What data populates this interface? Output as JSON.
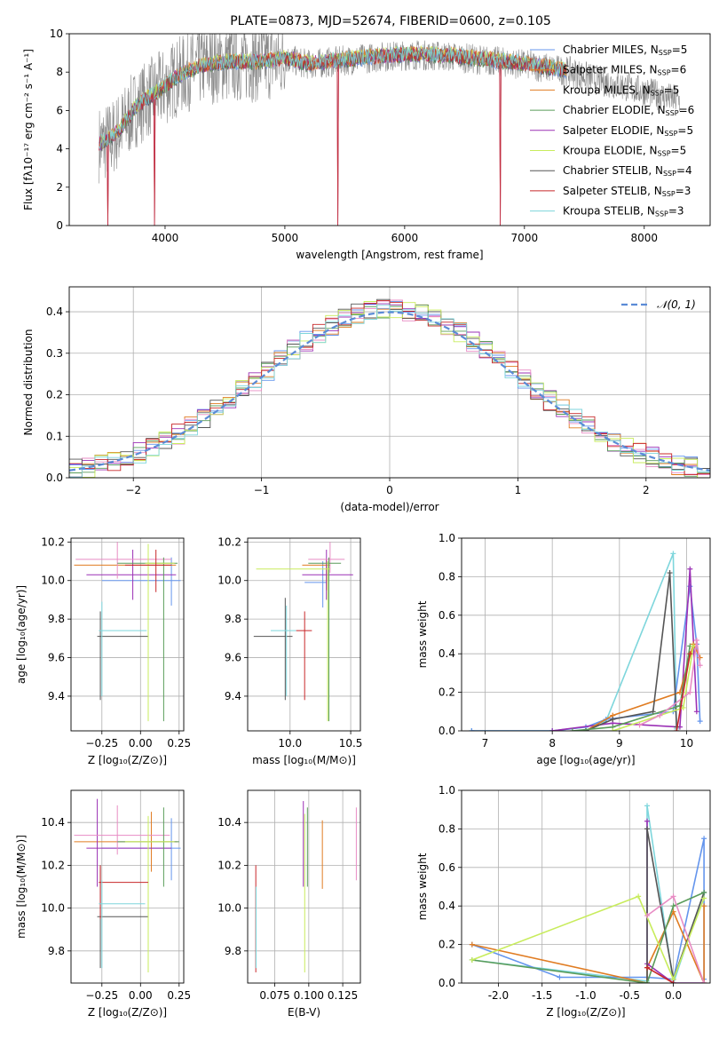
{
  "title": "PLATE=0873, MJD=52674, FIBERID=0600, z=0.105",
  "colors": [
    "#6495ed",
    "#e07c22",
    "#9b30b5",
    "#e88cc4",
    "#555555",
    "#5a9c5a",
    "#c8ec5c",
    "#c8282a",
    "#7ed6dc",
    "#999999"
  ],
  "chart_data": [
    {
      "id": "spectrum",
      "type": "line",
      "xlabel": "wavelength [Angstrom, rest frame]",
      "ylabel": "Flux [fλ10⁻¹⁷ erg cm⁻² s⁻¹ A⁻¹]",
      "xlim": [
        3200,
        8550
      ],
      "ylim": [
        0,
        10
      ],
      "xticks": [
        4000,
        5000,
        6000,
        7000,
        8000
      ],
      "yticks": [
        0,
        2,
        4,
        6,
        8,
        10
      ],
      "series": [
        {
          "name": "Chabrier MILES, N",
          "sub": "SSP",
          "suffix": "=5",
          "color": "#6495ed"
        },
        {
          "name": "Salpeter MILES, N",
          "sub": "SSP",
          "suffix": "=6",
          "color": "#e07c22"
        },
        {
          "name": "Kroupa MILES, N",
          "sub": "SSP",
          "suffix": "=5",
          "color": "#e07c22"
        },
        {
          "name": "Chabrier ELODIE, N",
          "sub": "SSP",
          "suffix": "=6",
          "color": "#5a9c5a"
        },
        {
          "name": "Salpeter ELODIE, N",
          "sub": "SSP",
          "suffix": "=5",
          "color": "#9b30b5"
        },
        {
          "name": "Kroupa ELODIE, N",
          "sub": "SSP",
          "suffix": "=5",
          "color": "#c8ec5c"
        },
        {
          "name": "Chabrier STELIB, N",
          "sub": "SSP",
          "suffix": "=4",
          "color": "#555555"
        },
        {
          "name": "Salpeter STELIB, N",
          "sub": "SSP",
          "suffix": "=3",
          "color": "#c8282a"
        },
        {
          "name": "Kroupa STELIB, N",
          "sub": "SSP",
          "suffix": "=3",
          "color": "#7ed6dc"
        }
      ],
      "data_profile": {
        "x": [
          3450,
          3550,
          3650,
          3750,
          3850,
          3950,
          4050,
          4150,
          4300,
          4500,
          4800,
          5000,
          5200,
          5500,
          5800,
          6100,
          6400,
          6700,
          7000,
          7200,
          7400,
          7600,
          7800,
          8000,
          8300
        ],
        "y": [
          4.2,
          4.5,
          5.2,
          6.1,
          6.6,
          7.0,
          7.5,
          7.9,
          8.3,
          8.5,
          8.5,
          8.7,
          8.4,
          8.6,
          8.8,
          8.9,
          8.8,
          8.6,
          8.4,
          8.2,
          8.0,
          7.6,
          7.3,
          7.0,
          6.5
        ]
      },
      "emission_dips": [
        3520,
        3910,
        5440,
        6800
      ]
    },
    {
      "id": "residuals",
      "type": "line",
      "xlabel": "(data-model)/error",
      "ylabel": "Normed distribution",
      "xlim": [
        -2.5,
        2.5
      ],
      "ylim": [
        0,
        0.46
      ],
      "xticks": [
        -2,
        -1,
        0,
        1,
        2
      ],
      "yticks": [
        0.0,
        0.1,
        0.2,
        0.3,
        0.4
      ],
      "legend": "𝒩(0, 1)",
      "legend_pos": "top-right"
    },
    {
      "id": "age_vs_Z",
      "type": "errorbar",
      "xlabel": "Z [log₁₀(Z/Z⊙)]",
      "ylabel": "age  [log₁₀(age/yr)]",
      "xlim": [
        -0.45,
        0.28
      ],
      "ylim": [
        9.22,
        10.22
      ],
      "xticks": [
        -0.25,
        0.0,
        0.25
      ],
      "yticks": [
        9.4,
        9.6,
        9.8,
        10.0,
        10.2
      ],
      "points": [
        {
          "x": 0.2,
          "y": 10.0,
          "xl": -0.25,
          "xh": 0.26,
          "yl": 9.87,
          "yh": 10.12,
          "color": "#6495ed"
        },
        {
          "x": 0.05,
          "y": 10.08,
          "xl": -0.43,
          "xh": 0.23,
          "yl": 9.96,
          "yh": 10.12,
          "color": "#e07c22"
        },
        {
          "x": -0.05,
          "y": 10.03,
          "xl": -0.35,
          "xh": 0.23,
          "yl": 9.9,
          "yh": 10.16,
          "color": "#9b30b5"
        },
        {
          "x": -0.15,
          "y": 10.11,
          "xl": -0.42,
          "xh": 0.2,
          "yl": 10.01,
          "yh": 10.2,
          "color": "#e88cc4"
        },
        {
          "x": -0.26,
          "y": 9.71,
          "xl": -0.28,
          "xh": 0.05,
          "yl": 9.38,
          "yh": 9.84,
          "color": "#555555"
        },
        {
          "x": 0.15,
          "y": 10.09,
          "xl": -0.15,
          "xh": 0.24,
          "yl": 9.27,
          "yh": 10.12,
          "color": "#5a9c5a"
        },
        {
          "x": 0.05,
          "y": 10.09,
          "xl": 0.03,
          "xh": 0.22,
          "yl": 9.27,
          "yh": 10.19,
          "color": "#c8ec5c"
        },
        {
          "x": 0.1,
          "y": 10.08,
          "xl": -0.1,
          "xh": 0.2,
          "yl": 9.94,
          "yh": 10.16,
          "color": "#c8282a"
        },
        {
          "x": -0.25,
          "y": 9.74,
          "xl": -0.27,
          "xh": 0.04,
          "yl": 9.4,
          "yh": 9.89,
          "color": "#7ed6dc"
        }
      ]
    },
    {
      "id": "age_vs_mass",
      "type": "errorbar",
      "xlabel": "mass [log₁₀(M/M⊙)]",
      "ylabel": "",
      "xlim": [
        9.65,
        10.58
      ],
      "ylim": [
        9.22,
        10.22
      ],
      "xticks": [
        10.0,
        10.5
      ],
      "yticks": [
        9.4,
        9.6,
        9.8,
        10.0,
        10.2
      ],
      "points": [
        {
          "x": 10.27,
          "y": 9.99,
          "xl": 10.12,
          "xh": 10.3,
          "yl": 9.86,
          "yh": 10.1,
          "color": "#6495ed"
        },
        {
          "x": 10.3,
          "y": 10.08,
          "xl": 10.1,
          "xh": 10.33,
          "yl": 9.95,
          "yh": 10.11,
          "color": "#e07c22"
        },
        {
          "x": 10.3,
          "y": 10.03,
          "xl": 10.1,
          "xh": 10.52,
          "yl": 9.9,
          "yh": 10.16,
          "color": "#9b30b5"
        },
        {
          "x": 10.33,
          "y": 10.11,
          "xl": 10.15,
          "xh": 10.45,
          "yl": 10.04,
          "yh": 10.2,
          "color": "#e88cc4"
        },
        {
          "x": 9.96,
          "y": 9.71,
          "xl": 9.7,
          "xh": 10.02,
          "yl": 9.38,
          "yh": 9.91,
          "color": "#555555"
        },
        {
          "x": 10.32,
          "y": 10.09,
          "xl": 10.15,
          "xh": 10.42,
          "yl": 9.27,
          "yh": 10.12,
          "color": "#5a9c5a"
        },
        {
          "x": 10.31,
          "y": 10.06,
          "xl": 9.72,
          "xh": 10.33,
          "yl": 9.27,
          "yh": 10.1,
          "color": "#c8ec5c"
        },
        {
          "x": 10.12,
          "y": 9.74,
          "xl": 10.05,
          "xh": 10.18,
          "yl": 9.38,
          "yh": 9.84,
          "color": "#c8282a"
        },
        {
          "x": 9.97,
          "y": 9.74,
          "xl": 9.84,
          "xh": 10.05,
          "yl": 9.4,
          "yh": 9.87,
          "color": "#7ed6dc"
        }
      ]
    },
    {
      "id": "weight_vs_age",
      "type": "line",
      "xlabel": "age  [log₁₀(age/yr)]",
      "ylabel": "mass weight",
      "xlim": [
        6.65,
        10.35
      ],
      "ylim": [
        0,
        1.0
      ],
      "xticks": [
        7,
        8,
        9,
        10
      ],
      "yticks": [
        0.0,
        0.2,
        0.4,
        0.6,
        0.8,
        1.0
      ],
      "series": [
        {
          "color": "#7ed6dc",
          "x": [
            6.8,
            8.0,
            8.5,
            8.8,
            9.8,
            9.85
          ],
          "y": [
            0.0,
            0.0,
            0.02,
            0.05,
            0.92,
            0.01
          ]
        },
        {
          "color": "#6495ed",
          "x": [
            6.8,
            8.0,
            8.5,
            8.8,
            9.8,
            10.05,
            10.15,
            10.2
          ],
          "y": [
            0.0,
            0.0,
            0.02,
            0.06,
            0.1,
            0.75,
            0.45,
            0.05
          ]
        },
        {
          "color": "#9b30b5",
          "x": [
            8.0,
            8.9,
            9.9,
            10.05,
            10.15
          ],
          "y": [
            0.0,
            0.04,
            0.02,
            0.84,
            0.1
          ]
        },
        {
          "color": "#e07c22",
          "x": [
            8.5,
            8.9,
            9.9,
            10.1,
            10.2
          ],
          "y": [
            0.0,
            0.08,
            0.2,
            0.45,
            0.38
          ]
        },
        {
          "color": "#555555",
          "x": [
            8.5,
            8.9,
            9.5,
            9.75,
            9.85
          ],
          "y": [
            0.0,
            0.06,
            0.1,
            0.82,
            0.02
          ]
        },
        {
          "color": "#5a9c5a",
          "x": [
            8.3,
            8.9,
            9.9,
            10.05
          ],
          "y": [
            0.0,
            0.02,
            0.13,
            0.44
          ]
        },
        {
          "color": "#c8ec5c",
          "x": [
            8.9,
            9.6,
            9.95,
            10.1
          ],
          "y": [
            0.0,
            0.08,
            0.12,
            0.44
          ]
        },
        {
          "color": "#e88cc4",
          "x": [
            9.3,
            9.6,
            10.05,
            10.15,
            10.2
          ],
          "y": [
            0.03,
            0.08,
            0.2,
            0.47,
            0.34
          ]
        },
        {
          "color": "#c8282a",
          "x": [
            9.85,
            10.05
          ],
          "y": [
            0.0,
            0.4
          ]
        }
      ]
    },
    {
      "id": "mass_vs_Z",
      "type": "errorbar",
      "xlabel": "Z [log₁₀(Z/Z⊙)]",
      "ylabel": "mass [log₁₀(M/M⊙)]",
      "xlim": [
        -0.45,
        0.28
      ],
      "ylim": [
        9.65,
        10.55
      ],
      "xticks": [
        -0.25,
        0.0,
        0.25
      ],
      "yticks": [
        9.8,
        10.0,
        10.2,
        10.4
      ],
      "points": [
        {
          "x": 0.2,
          "y": 10.28,
          "xl": -0.25,
          "xh": 0.26,
          "yl": 10.13,
          "yh": 10.42,
          "color": "#6495ed"
        },
        {
          "x": 0.07,
          "y": 10.31,
          "xl": -0.43,
          "xh": 0.24,
          "yl": 10.17,
          "yh": 10.45,
          "color": "#e07c22"
        },
        {
          "x": -0.28,
          "y": 10.28,
          "xl": -0.35,
          "xh": 0.2,
          "yl": 10.1,
          "yh": 10.51,
          "color": "#9b30b5"
        },
        {
          "x": -0.15,
          "y": 10.34,
          "xl": -0.43,
          "xh": 0.19,
          "yl": 10.25,
          "yh": 10.48,
          "color": "#e88cc4"
        },
        {
          "x": -0.26,
          "y": 9.96,
          "xl": -0.28,
          "xh": 0.05,
          "yl": 9.72,
          "yh": 10.2,
          "color": "#555555"
        },
        {
          "x": 0.15,
          "y": 10.31,
          "xl": -0.15,
          "xh": 0.25,
          "yl": 10.1,
          "yh": 10.47,
          "color": "#5a9c5a"
        },
        {
          "x": 0.05,
          "y": 10.31,
          "xl": -0.1,
          "xh": 0.22,
          "yl": 9.7,
          "yh": 10.43,
          "color": "#c8ec5c"
        },
        {
          "x": -0.26,
          "y": 10.12,
          "xl": -0.27,
          "xh": 0.05,
          "yl": 9.95,
          "yh": 10.2,
          "color": "#c8282a"
        },
        {
          "x": -0.25,
          "y": 10.02,
          "xl": -0.27,
          "xh": 0.03,
          "yl": 9.72,
          "yh": 10.13,
          "color": "#7ed6dc"
        }
      ]
    },
    {
      "id": "mass_vs_ebv",
      "type": "errorbar",
      "xlabel": "E(B-V)",
      "ylabel": "",
      "xlim": [
        0.055,
        0.138
      ],
      "ylim": [
        9.65,
        10.55
      ],
      "xticks": [
        0.075,
        0.1,
        0.125
      ],
      "yticks": [
        9.8,
        10.0,
        10.2,
        10.4
      ],
      "points": [
        {
          "x": 0.061,
          "y": 10.0,
          "xl": 0.061,
          "xh": 0.061,
          "yl": 9.7,
          "yh": 10.2,
          "color": "#c8282a"
        },
        {
          "x": 0.0612,
          "y": 9.95,
          "xl": 0.0612,
          "xh": 0.0612,
          "yl": 9.72,
          "yh": 10.1,
          "color": "#7ed6dc"
        },
        {
          "x": 0.096,
          "y": 10.3,
          "xl": 0.096,
          "xh": 0.096,
          "yl": 10.1,
          "yh": 10.5,
          "color": "#9b30b5"
        },
        {
          "x": 0.097,
          "y": 10.1,
          "xl": 0.097,
          "xh": 0.097,
          "yl": 9.7,
          "yh": 10.44,
          "color": "#c8ec5c"
        },
        {
          "x": 0.099,
          "y": 10.3,
          "xl": 0.099,
          "xh": 0.099,
          "yl": 10.1,
          "yh": 10.47,
          "color": "#5a9c5a"
        },
        {
          "x": 0.11,
          "y": 10.25,
          "xl": 0.11,
          "xh": 0.11,
          "yl": 10.09,
          "yh": 10.41,
          "color": "#e07c22"
        },
        {
          "x": 0.135,
          "y": 10.3,
          "xl": 0.135,
          "xh": 0.135,
          "yl": 10.13,
          "yh": 10.47,
          "color": "#e88cc4"
        }
      ]
    },
    {
      "id": "weight_vs_Z",
      "type": "line",
      "xlabel": "Z [log₁₀(Z/Z⊙)]",
      "ylabel": "mass weight",
      "xlim": [
        -2.42,
        0.42
      ],
      "ylim": [
        0,
        1.0
      ],
      "xticks": [
        -2.0,
        -1.5,
        -1.0,
        -0.5,
        0.0
      ],
      "yticks": [
        0.0,
        0.2,
        0.4,
        0.6,
        0.8,
        1.0
      ],
      "series": [
        {
          "color": "#7ed6dc",
          "x": [
            -2.3,
            -0.3,
            -0.3,
            0.0,
            0.35
          ],
          "y": [
            0.12,
            0.01,
            0.92,
            0.0,
            0.47
          ]
        },
        {
          "color": "#6495ed",
          "x": [
            -2.3,
            -1.3,
            -0.3,
            0.0,
            0.35,
            0.35
          ],
          "y": [
            0.2,
            0.03,
            0.03,
            0.02,
            0.75,
            0.02
          ]
        },
        {
          "color": "#e07c22",
          "x": [
            -2.3,
            -0.3,
            -0.3,
            0.0,
            0.35,
            0.35
          ],
          "y": [
            0.2,
            0.0,
            0.08,
            0.37,
            0.0,
            0.4
          ]
        },
        {
          "color": "#9b30b5",
          "x": [
            -0.3,
            -0.3,
            0.0,
            0.35
          ],
          "y": [
            0.84,
            0.1,
            0.0,
            0.0
          ]
        },
        {
          "color": "#555555",
          "x": [
            -0.3,
            -0.3,
            0.0,
            0.35
          ],
          "y": [
            0.0,
            0.8,
            0.02,
            0.47
          ]
        },
        {
          "color": "#5a9c5a",
          "x": [
            -2.3,
            -0.3,
            0.0,
            0.35
          ],
          "y": [
            0.12,
            0.0,
            0.4,
            0.47
          ]
        },
        {
          "color": "#c8ec5c",
          "x": [
            -2.3,
            -0.4,
            0.0,
            0.35
          ],
          "y": [
            0.12,
            0.45,
            0.02,
            0.44
          ]
        },
        {
          "color": "#e88cc4",
          "x": [
            -0.3,
            0.0,
            0.35
          ],
          "y": [
            0.35,
            0.45,
            0.0
          ]
        },
        {
          "color": "#c8282a",
          "x": [
            -0.3,
            0.0
          ],
          "y": [
            0.08,
            0.0
          ]
        }
      ]
    }
  ]
}
